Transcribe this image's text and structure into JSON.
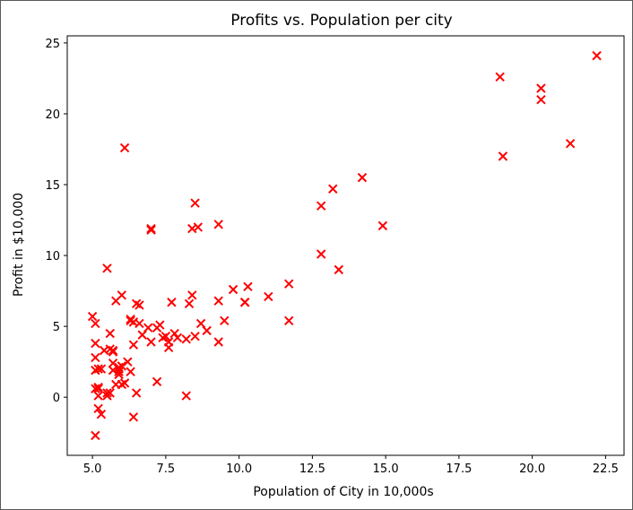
{
  "chart_data": {
    "type": "scatter",
    "title": "Profits vs. Population per city",
    "xlabel": "Population of City in 10,000s",
    "ylabel": "Profit in $10,000",
    "xlim": [
      4.14,
      23.13
    ],
    "ylim": [
      -4.1,
      25.5
    ],
    "xticks": [
      "5.0",
      "7.5",
      "10.0",
      "12.5",
      "15.0",
      "17.5",
      "20.0",
      "22.5"
    ],
    "xtick_values": [
      5.0,
      7.5,
      10.0,
      12.5,
      15.0,
      17.5,
      20.0,
      22.5
    ],
    "yticks": [
      "0",
      "5",
      "10",
      "15",
      "20",
      "25"
    ],
    "ytick_values": [
      0,
      5,
      10,
      15,
      20,
      25
    ],
    "grid": false,
    "marker": "x",
    "marker_color": "#ff0000",
    "x": [
      6.1,
      5.5,
      8.5,
      7.0,
      5.8,
      8.4,
      7.5,
      8.6,
      6.5,
      5.1,
      5.7,
      14.2,
      5.7,
      6.0,
      5.2,
      7.6,
      5.0,
      5.4,
      6.4,
      5.1,
      5.7,
      6.6,
      5.6,
      9.3,
      5.9,
      5.6,
      6.6,
      13.2,
      9.8,
      8.5,
      7.4,
      12.8,
      6.4,
      5.3,
      6.3,
      5.6,
      6.1,
      7.3,
      5.9,
      6.2,
      5.2,
      8.3,
      6.9,
      5.7,
      7.7,
      5.1,
      5.5,
      7.2,
      5.2,
      6.5,
      8.2,
      5.2,
      5.8,
      5.1,
      5.5,
      5.2,
      21.3,
      5.9,
      6.3,
      5.1,
      5.3,
      6.0,
      5.9,
      8.2,
      7.0,
      11.7,
      7.0,
      7.2,
      8.7,
      10.2,
      10.3,
      11.0,
      11.7,
      20.3,
      18.9,
      22.2,
      20.3,
      13.4,
      19.0,
      9.3,
      14.9,
      12.8,
      9.5,
      9.3,
      10.2,
      7.6,
      8.4,
      8.9,
      7.9,
      7.8,
      6.4,
      6.3,
      6.7,
      6.0,
      5.1
    ],
    "y": [
      17.6,
      9.1,
      13.7,
      11.9,
      6.8,
      11.9,
      4.3,
      12.0,
      6.6,
      3.8,
      3.3,
      15.5,
      3.2,
      7.2,
      0.7,
      3.5,
      5.7,
      3.3,
      5.3,
      1.9,
      2.4,
      6.5,
      4.5,
      12.2,
      2.0,
      3.4,
      5.2,
      14.7,
      7.6,
      4.3,
      4.2,
      10.1,
      3.7,
      2.0,
      1.8,
      0.3,
      1.0,
      5.1,
      2.1,
      2.5,
      0.6,
      6.6,
      4.9,
      1.9,
      6.7,
      0.6,
      0.3,
      1.1,
      0.1,
      0.3,
      4.1,
      -0.8,
      0.9,
      5.2,
      0.1,
      2.0,
      17.9,
      1.6,
      5.4,
      2.8,
      -1.2,
      0.9,
      1.8,
      0.1,
      11.8,
      5.4,
      3.9,
      4.9,
      5.2,
      6.7,
      7.8,
      7.1,
      8.0,
      21.0,
      22.6,
      24.1,
      21.8,
      9.0,
      17.0,
      3.9,
      12.1,
      13.5,
      5.4,
      6.8,
      6.7,
      3.9,
      7.2,
      4.7,
      4.2,
      4.5,
      -1.4,
      5.5,
      4.4,
      2.2,
      -2.7
    ]
  }
}
